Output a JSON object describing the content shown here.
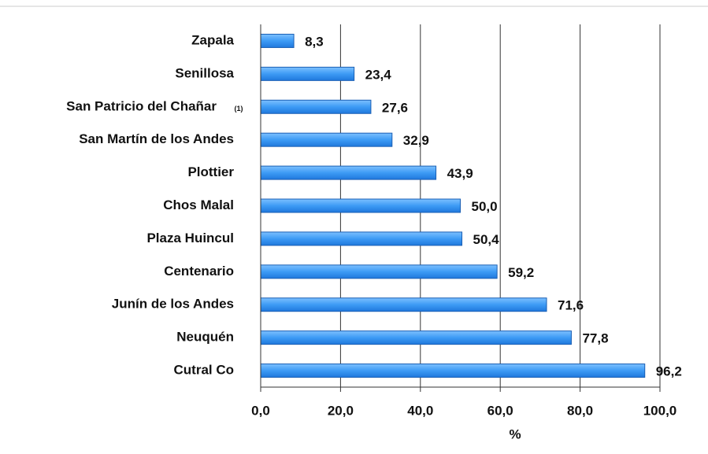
{
  "chart_data": {
    "type": "barh",
    "categories": [
      "Zapala",
      "Senillosa",
      "San Patricio del Chañar",
      "San Martín de los Andes",
      "Plottier",
      "Chos Malal",
      "Plaza Huincul",
      "Centenario",
      "Junín de los Andes",
      "Neuquén",
      "Cutral Co"
    ],
    "category_notes": [
      null,
      null,
      "(1)",
      null,
      null,
      null,
      null,
      null,
      null,
      null,
      null
    ],
    "values": [
      8.3,
      23.4,
      27.6,
      32.9,
      43.9,
      50.0,
      50.4,
      59.2,
      71.6,
      77.8,
      96.2
    ],
    "value_labels": [
      "8,3",
      "23,4",
      "27,6",
      "32,9",
      "43,9",
      "50,0",
      "50,4",
      "59,2",
      "71,6",
      "77,8",
      "96,2"
    ],
    "color": "#3d9bf5",
    "xlabel": "%",
    "xlim": [
      0,
      100
    ],
    "xticks": [
      {
        "value": 0,
        "label": "0,0"
      },
      {
        "value": 20,
        "label": "20,0"
      },
      {
        "value": 40,
        "label": "40,0"
      },
      {
        "value": 60,
        "label": "60,0"
      },
      {
        "value": 80,
        "label": "80,0"
      },
      {
        "value": 100,
        "label": "100,0"
      }
    ],
    "grid": true
  }
}
